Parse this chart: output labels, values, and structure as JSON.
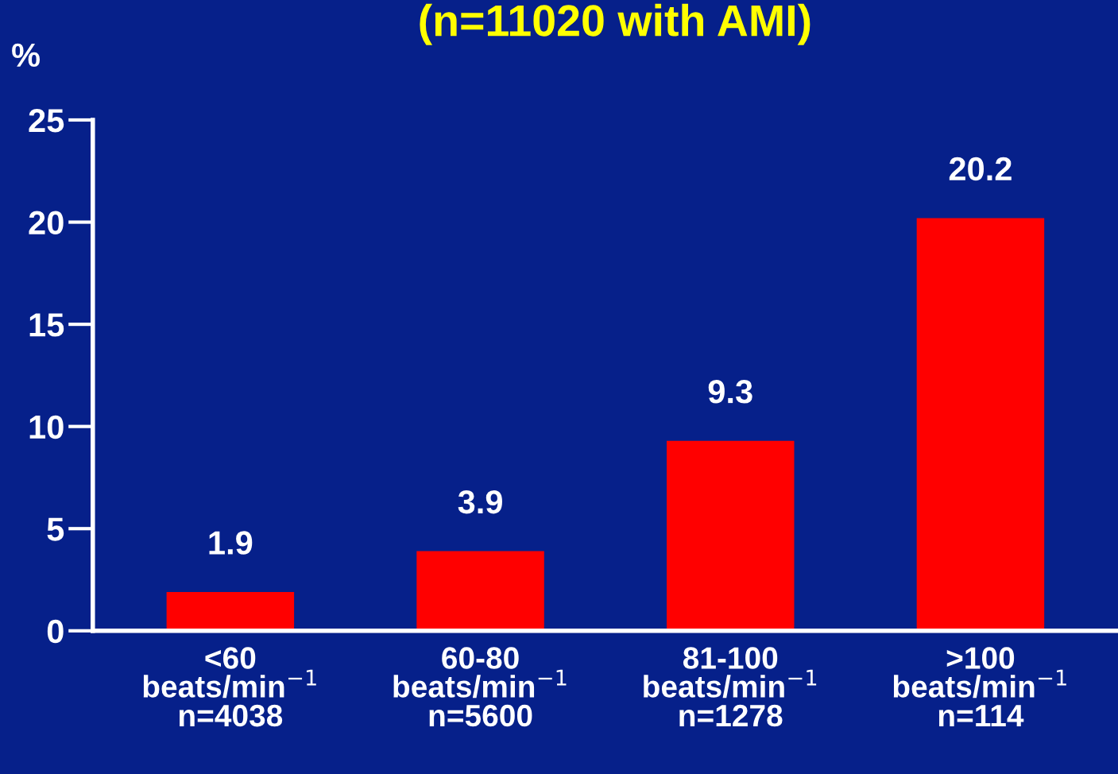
{
  "chart_data": {
    "type": "bar",
    "title": "(n=11020 with AMI)",
    "ylabel": "%",
    "categories": [
      "<60\nbeats/min$^{−1}$\nn=4038",
      "60-80\nbeats/min$^{−1}$\nn=5600",
      "81-100\nbeats/min$^{−1}$\nn=1278",
      ">100\nbeats/min$^{−1}$\nn=114"
    ],
    "values": [
      1.9,
      3.9,
      9.3,
      20.2
    ],
    "color": "#ff0000",
    "ylim": [
      0,
      25
    ],
    "yticks": [
      0,
      5,
      10,
      15,
      20,
      25
    ],
    "grid": false,
    "data_labels": true
  }
}
